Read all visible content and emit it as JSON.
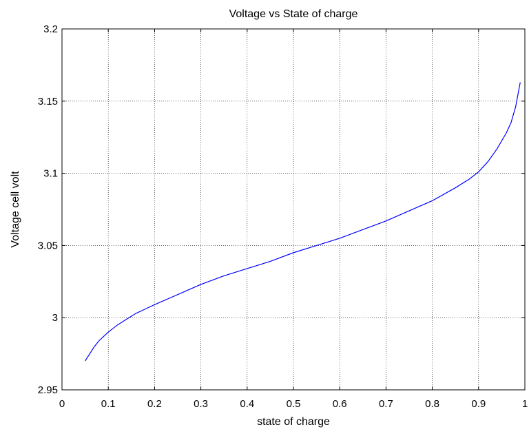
{
  "chart_data": {
    "type": "line",
    "title": "Voltage  vs  State of charge",
    "xlabel": "state of charge",
    "ylabel": "Voltage cell  volt",
    "xlim": [
      0,
      1
    ],
    "ylim": [
      2.95,
      3.2
    ],
    "xticks": [
      "0",
      "0.1",
      "0.2",
      "0.3",
      "0.4",
      "0.5",
      "0.6",
      "0.7",
      "0.8",
      "0.9",
      "1"
    ],
    "yticks": [
      "2.95",
      "3",
      "3.05",
      "3.1",
      "3.15",
      "3.2"
    ],
    "grid": true,
    "series": [
      {
        "color": "#0000ff",
        "x": [
          0.05,
          0.06,
          0.07,
          0.08,
          0.09,
          0.1,
          0.12,
          0.14,
          0.16,
          0.18,
          0.2,
          0.25,
          0.3,
          0.35,
          0.4,
          0.45,
          0.5,
          0.55,
          0.6,
          0.65,
          0.7,
          0.75,
          0.8,
          0.85,
          0.88,
          0.9,
          0.92,
          0.94,
          0.96,
          0.97,
          0.98,
          0.99
        ],
        "y": [
          2.97,
          2.975,
          2.98,
          2.984,
          2.987,
          2.99,
          2.995,
          2.999,
          3.003,
          3.006,
          3.009,
          3.016,
          3.023,
          3.029,
          3.034,
          3.039,
          3.045,
          3.05,
          3.055,
          3.061,
          3.067,
          3.074,
          3.081,
          3.09,
          3.096,
          3.101,
          3.108,
          3.117,
          3.128,
          3.135,
          3.146,
          3.163
        ]
      }
    ]
  }
}
